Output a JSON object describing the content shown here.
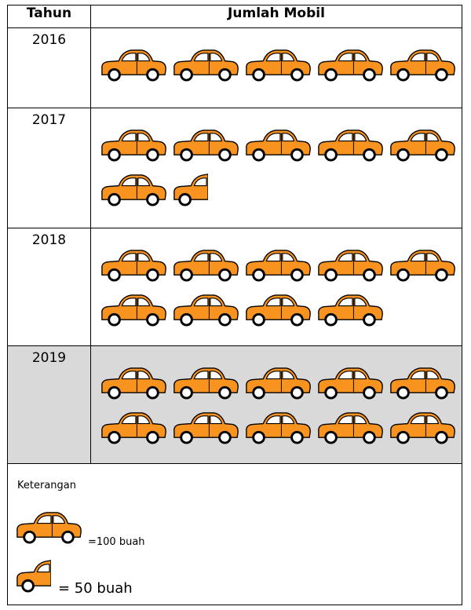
{
  "chart_data": {
    "type": "table",
    "columns": [
      "Tahun",
      "Jumlah Mobil"
    ],
    "rows": [
      {
        "year": "2016",
        "value": 500,
        "icons": 5
      },
      {
        "year": "2017",
        "value": 650,
        "icons": 6.5
      },
      {
        "year": "2018",
        "value": 900,
        "icons": 9
      },
      {
        "year": "2019",
        "value": 1000,
        "icons": 10
      }
    ],
    "highlighted_year": "2019",
    "legend": {
      "title": "Keterangan",
      "full_icon_label": "=100 buah",
      "half_icon_label": "= 50 buah",
      "full_icon_value": 100,
      "half_icon_value": 50
    },
    "icon": "orange-car-icon",
    "colors": {
      "car_body": "#f7931e",
      "car_outline": "#000000",
      "shade": "#d9d9d9"
    }
  }
}
